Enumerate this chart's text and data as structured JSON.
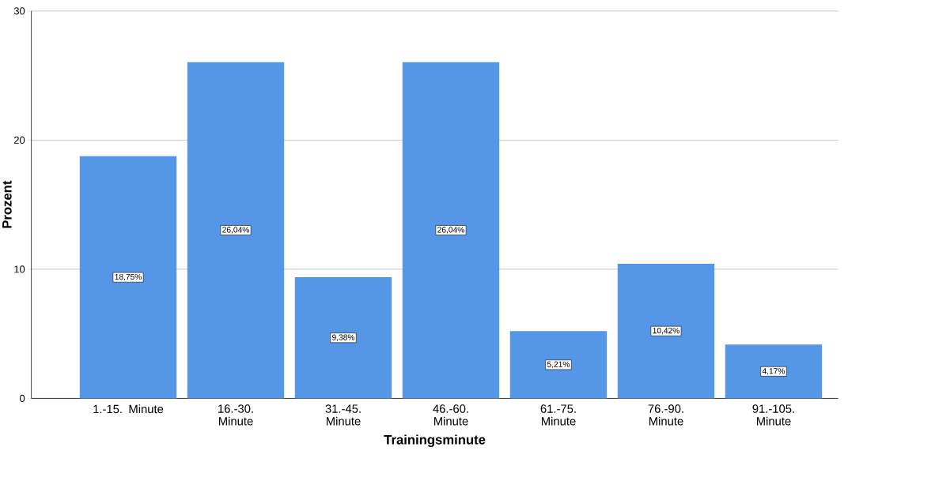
{
  "chart_data": {
    "type": "bar",
    "xlabel": "Trainingsminute",
    "ylabel": "Prozent",
    "categories": [
      "1.-15. Minute",
      "16.-30. Minute",
      "31.-45. Minute",
      "46.-60. Minute",
      "61.-75. Minute",
      "76.-90. Minute",
      "91.-105. Minute"
    ],
    "values": [
      18.75,
      26.04,
      9.38,
      26.04,
      5.21,
      10.42,
      4.17
    ],
    "value_labels": [
      "18,75%",
      "26,04%",
      "9,38%",
      "26,04%",
      "5,21%",
      "10,42%",
      "4,17%"
    ],
    "color": "#5596e6",
    "ylim": [
      0,
      30
    ],
    "yticks": [
      0,
      10,
      20,
      30
    ],
    "grid": "y"
  }
}
